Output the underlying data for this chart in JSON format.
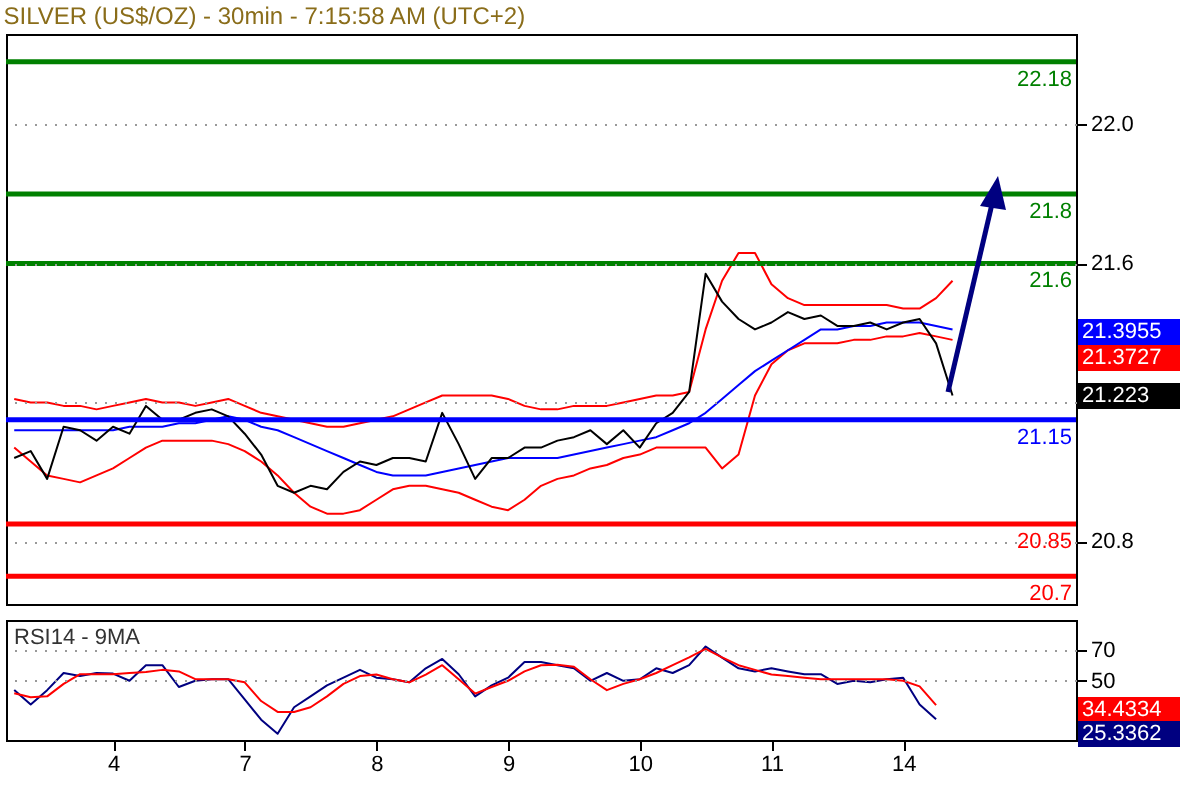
{
  "chart_data": [
    {
      "type": "line",
      "title": "SILVER (US$/OZ) - 30min - 7:15:58 AM (UTC+2)",
      "categories": [
        null,
        null,
        null,
        null,
        null,
        null,
        "4",
        null,
        null,
        null,
        null,
        null,
        null,
        null,
        "7",
        null,
        null,
        null,
        null,
        null,
        null,
        null,
        "8",
        null,
        null,
        null,
        null,
        null,
        null,
        null,
        "9",
        null,
        null,
        null,
        null,
        null,
        null,
        null,
        "10",
        null,
        null,
        null,
        null,
        null,
        null,
        null,
        "11",
        null,
        null,
        null,
        null,
        null,
        null,
        null,
        "14",
        null,
        null,
        null,
        null,
        null,
        null,
        null,
        null,
        null,
        null
      ],
      "tick_labels": "y",
      "ylim": [
        20.62,
        22.26
      ],
      "yticks": [
        20.8,
        {
          "value": 21.2,
          "label": null
        },
        21.6,
        {
          "value": 22,
          "label": "22.0"
        }
      ],
      "grid": "y",
      "series": [
        {
          "color": "#ff0000",
          "values": [
            21.21,
            21.2,
            21.2,
            21.19,
            21.19,
            21.18,
            21.19,
            21.2,
            21.21,
            21.2,
            21.2,
            21.19,
            21.2,
            21.21,
            21.19,
            21.17,
            21.16,
            21.15,
            21.14,
            21.13,
            21.13,
            21.14,
            21.15,
            21.16,
            21.18,
            21.2,
            21.22,
            21.22,
            21.22,
            21.22,
            21.21,
            21.19,
            21.18,
            21.18,
            21.19,
            21.19,
            21.19,
            21.2,
            21.21,
            21.22,
            21.22,
            21.23,
            21.41,
            21.55,
            21.63,
            21.63,
            21.54,
            21.5,
            21.48,
            21.48,
            21.48,
            21.48,
            21.48,
            21.48,
            21.47,
            21.47,
            21.5,
            21.55,
            null,
            null,
            null,
            null,
            null,
            null,
            null
          ]
        },
        {
          "color": "#ff0000",
          "values": [
            21.07,
            21.03,
            20.99,
            20.98,
            20.97,
            20.99,
            21.01,
            21.04,
            21.07,
            21.09,
            21.09,
            21.09,
            21.09,
            21.08,
            21.06,
            21.03,
            20.99,
            20.94,
            20.9,
            20.88,
            20.88,
            20.89,
            20.92,
            20.95,
            20.96,
            20.96,
            20.95,
            20.94,
            20.92,
            20.9,
            20.89,
            20.92,
            20.96,
            20.98,
            20.99,
            21.01,
            21.02,
            21.04,
            21.05,
            21.07,
            21.07,
            21.07,
            21.07,
            21.01,
            21.05,
            21.22,
            21.31,
            21.35,
            21.37,
            21.37,
            21.37,
            21.38,
            21.38,
            21.39,
            21.39,
            21.4,
            21.39,
            21.38,
            null,
            null,
            null,
            null,
            null,
            null,
            null
          ]
        },
        {
          "color": "#0000ff",
          "values": [
            21.12,
            21.12,
            21.12,
            21.12,
            21.12,
            21.12,
            21.12,
            21.13,
            21.13,
            21.13,
            21.14,
            21.14,
            21.15,
            21.16,
            21.15,
            21.13,
            21.12,
            21.1,
            21.08,
            21.06,
            21.04,
            21.02,
            21.0,
            20.99,
            20.99,
            20.99,
            21.0,
            21.01,
            21.02,
            21.03,
            21.04,
            21.04,
            21.04,
            21.04,
            21.05,
            21.06,
            21.07,
            21.08,
            21.09,
            21.1,
            21.12,
            21.14,
            21.17,
            21.21,
            21.25,
            21.29,
            21.32,
            21.35,
            21.38,
            21.41,
            21.41,
            21.42,
            21.42,
            21.43,
            21.43,
            21.43,
            21.42,
            21.41,
            null,
            null,
            null,
            null,
            null,
            null,
            null
          ]
        },
        {
          "color": "#000000",
          "values": [
            21.04,
            21.06,
            20.98,
            21.13,
            21.12,
            21.09,
            21.13,
            21.11,
            21.19,
            21.15,
            21.15,
            21.17,
            21.18,
            21.16,
            21.11,
            21.05,
            20.96,
            20.94,
            20.96,
            20.95,
            21.0,
            21.03,
            21.02,
            21.04,
            21.04,
            21.03,
            21.17,
            21.08,
            20.98,
            21.04,
            21.04,
            21.07,
            21.07,
            21.09,
            21.1,
            21.12,
            21.08,
            21.12,
            21.07,
            21.14,
            21.17,
            21.23,
            21.57,
            21.49,
            21.44,
            21.41,
            21.43,
            21.46,
            21.44,
            21.45,
            21.42,
            21.42,
            21.43,
            21.41,
            21.43,
            21.44,
            21.37,
            21.22,
            null,
            null,
            null,
            null,
            null,
            null,
            null
          ]
        }
      ],
      "ref_lines": [
        {
          "axis": "y",
          "value": 22.18,
          "label": "22.18",
          "color": "#008000"
        },
        {
          "axis": "y",
          "value": 21.8,
          "label": "21.8",
          "color": "#008000"
        },
        {
          "axis": "y",
          "value": 21.6,
          "label": "21.6",
          "color": "#008000"
        },
        {
          "axis": "y",
          "value": 21.15,
          "label": "21.15",
          "color": "#0000ff"
        },
        {
          "axis": "y",
          "value": 20.85,
          "label": "20.85",
          "color": "#ff0000"
        },
        {
          "axis": "y",
          "value": 20.7,
          "label": "20.7",
          "color": "#ff0000"
        }
      ],
      "annotations": [
        "21.3955",
        "21.3727",
        "21.223"
      ]
    },
    {
      "type": "line",
      "title": "RSI14 - 9MA",
      "categories": [
        null,
        null,
        null,
        null,
        null,
        null,
        "4",
        null,
        null,
        null,
        null,
        null,
        null,
        null,
        "7",
        null,
        null,
        null,
        null,
        null,
        null,
        null,
        "8",
        null,
        null,
        null,
        null,
        null,
        null,
        null,
        "9",
        null,
        null,
        null,
        null,
        null,
        null,
        null,
        "10",
        null,
        null,
        null,
        null,
        null,
        null,
        null,
        "11",
        null,
        null,
        null,
        null,
        null,
        null,
        null,
        "14",
        null,
        null,
        null,
        null,
        null,
        null,
        null,
        null,
        null,
        null
      ],
      "ylim": [
        12,
        89
      ],
      "yticks": [
        50,
        70
      ],
      "grid": "y",
      "series": [
        {
          "color": "#000080",
          "values": [
            44.1,
            34.8,
            44,
            55,
            53,
            55,
            54.6,
            50,
            60,
            60,
            46,
            50,
            51,
            51,
            38,
            25,
            16,
            33,
            40,
            47,
            52,
            57,
            52,
            51,
            49,
            58,
            64,
            54.2,
            40,
            47,
            52,
            62,
            62,
            60,
            58,
            50,
            55,
            50,
            51,
            58,
            55,
            60,
            72,
            64.9,
            58,
            56,
            58,
            56,
            54.2,
            54.2,
            48,
            50,
            49,
            51,
            52,
            34.8,
            25.3,
            null,
            null,
            null,
            null,
            null,
            null,
            null,
            null
          ]
        },
        {
          "color": "#ff0000",
          "values": [
            42,
            39.4,
            40,
            48,
            54.2,
            54.2,
            54.2,
            55,
            55.6,
            57,
            56,
            51,
            51,
            51,
            49,
            37,
            30,
            30,
            33,
            40,
            48,
            53,
            54,
            51,
            49,
            54,
            60,
            51,
            41.8,
            46,
            50,
            56,
            60,
            60.3,
            59,
            51,
            44,
            48,
            51,
            55,
            60,
            65,
            70.5,
            65,
            60,
            57,
            54,
            53,
            52,
            51,
            51,
            51,
            51,
            51,
            50,
            46.4,
            34.4,
            null,
            null,
            null,
            null,
            null,
            null,
            null,
            null
          ]
        }
      ],
      "annotations": [
        "34.4334",
        "25.3362"
      ]
    }
  ]
}
